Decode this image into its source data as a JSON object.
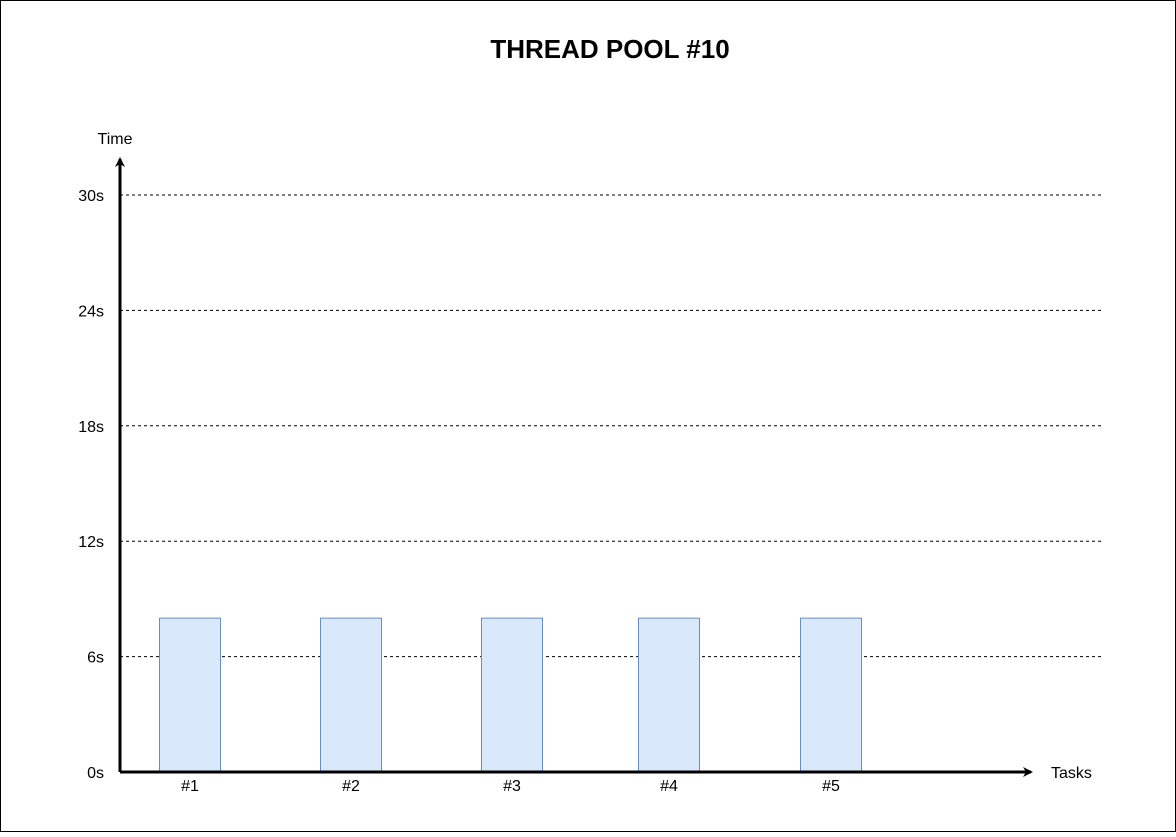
{
  "chart_data": {
    "type": "bar",
    "title": "THREAD POOL #10",
    "xlabel": "Tasks",
    "ylabel": "Time",
    "categories": [
      "#1",
      "#2",
      "#3",
      "#4",
      "#5"
    ],
    "values": [
      8,
      8,
      8,
      8,
      8
    ],
    "yticks": [
      0,
      6,
      12,
      18,
      24,
      30
    ],
    "ytick_labels": [
      "0s",
      "6s",
      "12s",
      "18s",
      "24s",
      "30s"
    ],
    "ylim": [
      0,
      30
    ],
    "grid": true,
    "colors": {
      "bar_fill": "#dae8fc",
      "bar_stroke": "#6c8ebf",
      "axis": "#000000",
      "grid": "#000000"
    }
  }
}
